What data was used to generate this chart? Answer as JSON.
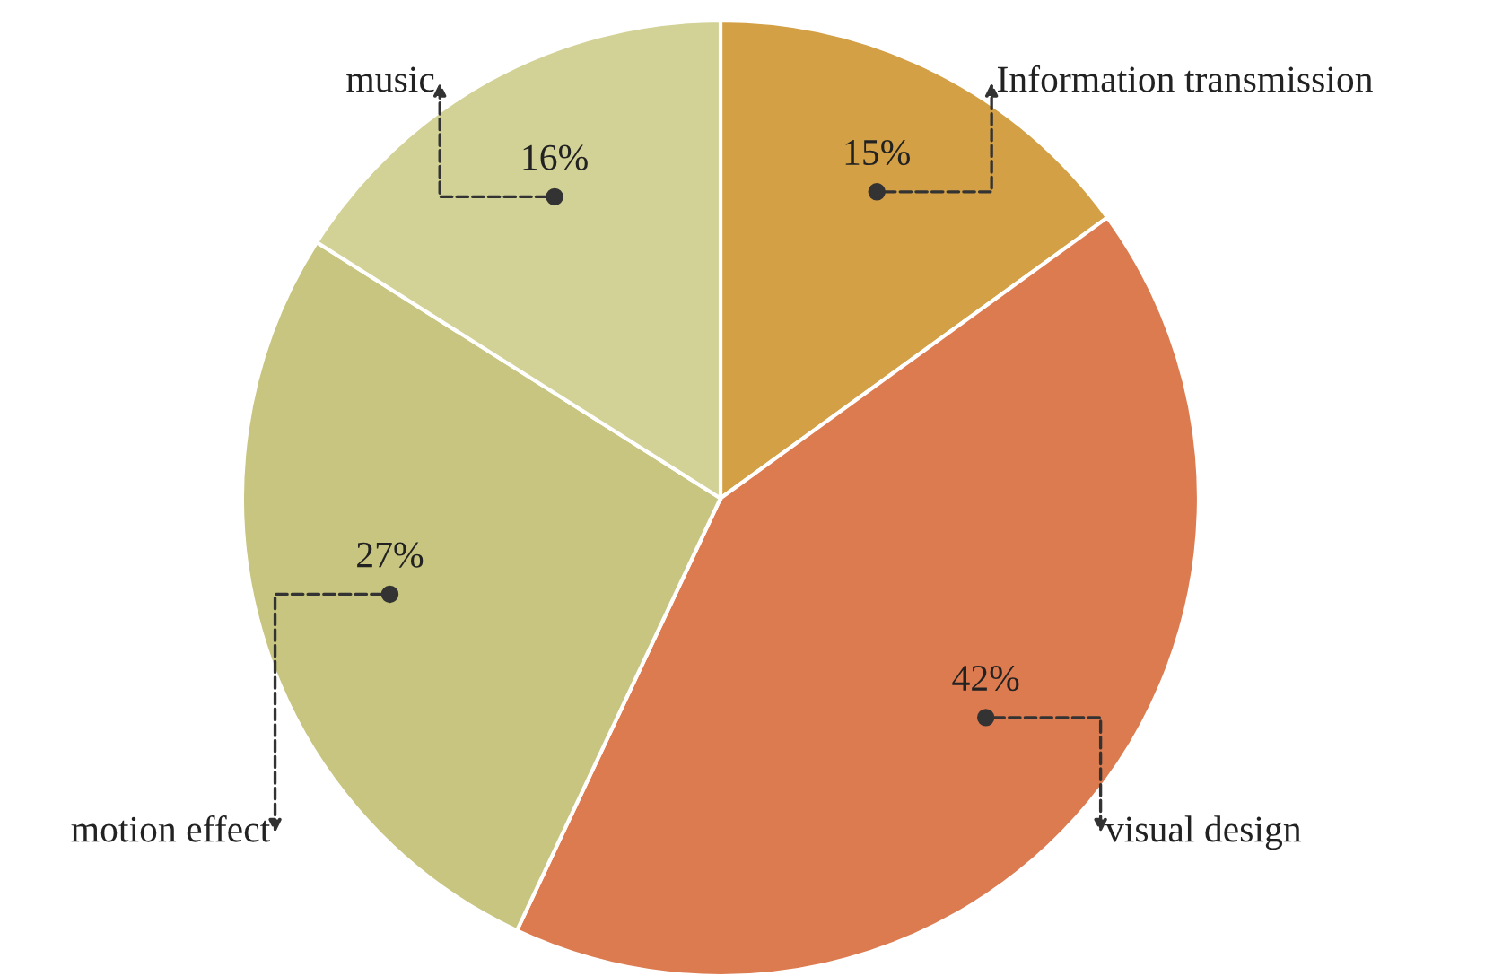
{
  "chart_data": {
    "type": "pie",
    "categories": [
      "Information transmission",
      "visual design",
      "motion effect",
      "music"
    ],
    "values": [
      15,
      42,
      27,
      16
    ],
    "colors": [
      "#d4a046",
      "#dc7b50",
      "#c7c57f",
      "#d2d196"
    ],
    "value_labels": [
      "15%",
      "42%",
      "27%",
      "16%"
    ],
    "legend": false
  }
}
